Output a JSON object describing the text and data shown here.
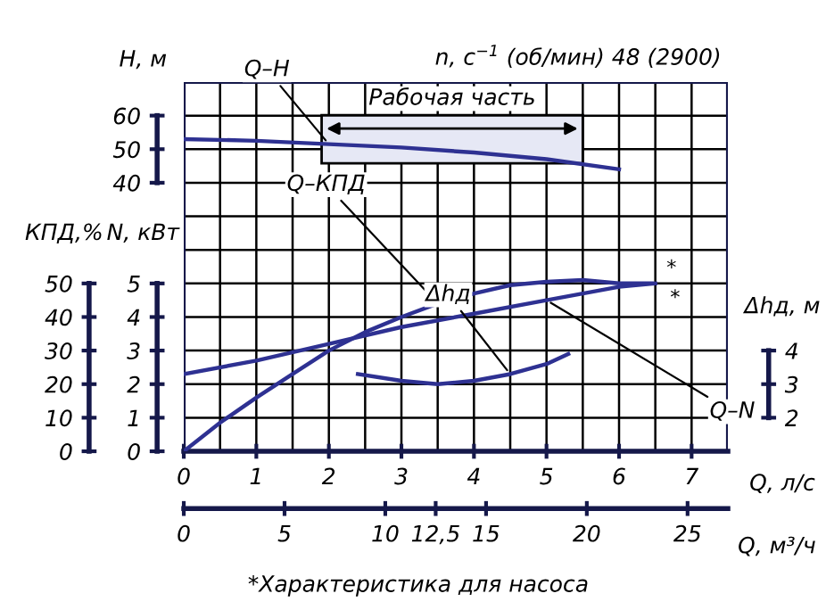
{
  "chart_data": [
    {
      "type": "line",
      "subtitle": "n, с$^{−1}$ (об/мин) 48 (2900)",
      "xlabel": "Q, л/с",
      "x2label": "Q, м³/ч",
      "ylabel": "КПД,%",
      "y2label": "N, кВт",
      "y3label": "H, м",
      "xlim": [
        0,
        7.5
      ],
      "xticks": [
        0,
        1,
        2,
        3,
        4,
        5,
        6,
        7
      ],
      "x2lim": [
        0,
        27
      ],
      "x2ticks": [
        0,
        5,
        10,
        {
          "value": 12.5,
          "label": "12,5"
        },
        15,
        20,
        25
      ],
      "ylim": [
        0,
        110
      ],
      "yticks": [
        0,
        10,
        20,
        30,
        40,
        50
      ],
      "y2lim": [
        0,
        11
      ],
      "y2ticks": [
        0,
        1,
        2,
        3,
        4,
        5
      ],
      "y3lim": [
        -40,
        70
      ],
      "y3ticks": [
        40,
        50,
        60
      ],
      "grid": true,
      "series": [
        {
          "name": "Q–H",
          "color": "#2e3192",
          "axis": "y3",
          "x": [
            0,
            1,
            2,
            3,
            4,
            5,
            6
          ],
          "values": [
            53,
            52.5,
            51.5,
            50.5,
            49,
            47,
            44
          ]
        },
        {
          "name": "Q–КПД",
          "color": "#2e3192",
          "x": [
            0,
            0.5,
            1,
            1.5,
            2,
            2.5,
            3,
            3.5,
            4,
            4.5,
            5,
            5.5,
            6,
            6.45
          ],
          "values": [
            0,
            8.5,
            16,
            23,
            30,
            35.5,
            40,
            44,
            47,
            49.5,
            50.5,
            51,
            50,
            50
          ]
        },
        {
          "name": "Q–N",
          "color": "#2e3192",
          "axis": "y2",
          "x": [
            0,
            1,
            2,
            3,
            4,
            5,
            6,
            6.5
          ],
          "values": [
            2.3,
            2.7,
            3.2,
            3.7,
            4.1,
            4.5,
            4.9,
            5.0
          ]
        }
      ],
      "bands": [
        {
          "axis": "x",
          "from": 1.9,
          "to": 5.5,
          "label": "Рабочая часть",
          "color": "#e6e8f5"
        }
      ],
      "annotations": [
        {
          "text": "*",
          "x": 6.45,
          "y": 50
        },
        {
          "text": "*",
          "x": 6.5,
          "y": 50
        },
        "*Характеристика для насоса"
      ]
    },
    {
      "type": "line",
      "ylabel": "Δhд, м",
      "xlim": [
        0,
        7.5
      ],
      "ylim": [
        1,
        12
      ],
      "yticks": [
        2,
        3,
        4
      ],
      "tick_labels": "y",
      "series": [
        {
          "name": "Δhд",
          "color": "#2e3192",
          "x": [
            2.4,
            3,
            3.5,
            4,
            4.5,
            5,
            5.3
          ],
          "values": [
            3.3,
            3.1,
            3.0,
            3.1,
            3.3,
            3.6,
            3.9
          ]
        }
      ]
    }
  ]
}
